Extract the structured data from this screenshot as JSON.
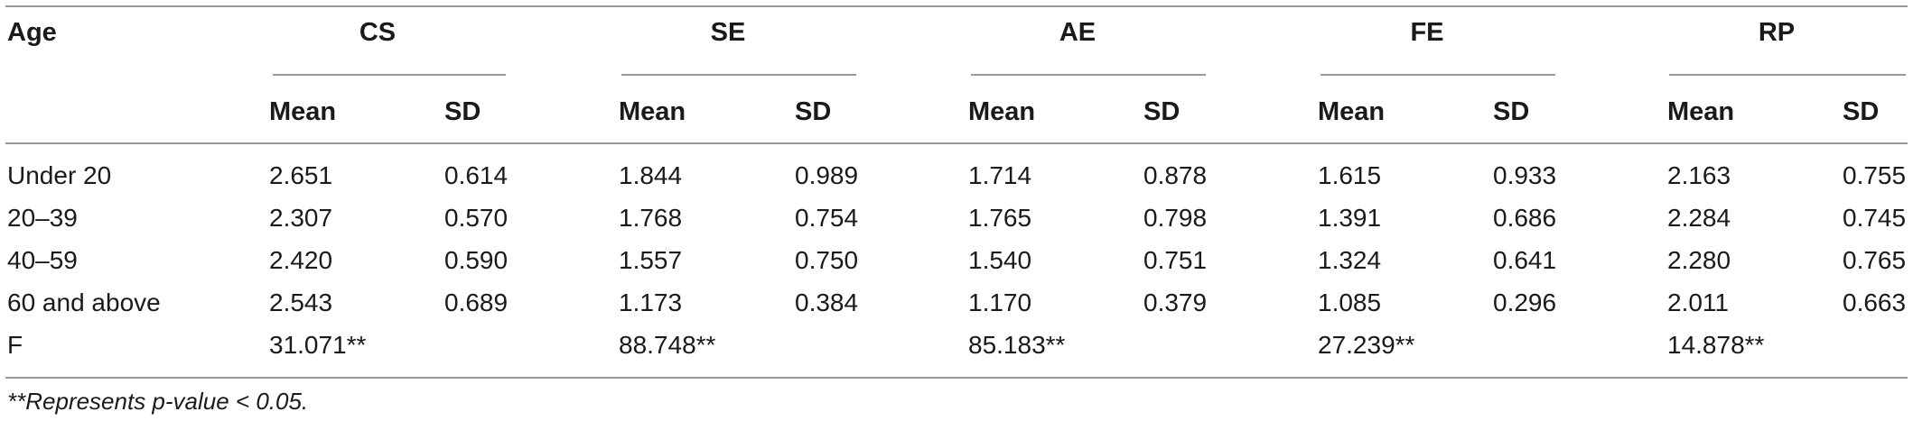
{
  "table": {
    "corner_header": "Age",
    "groups": [
      {
        "label": "CS",
        "mean_label": "Mean",
        "sd_label": "SD"
      },
      {
        "label": "SE",
        "mean_label": "Mean",
        "sd_label": "SD"
      },
      {
        "label": "AE",
        "mean_label": "Mean",
        "sd_label": "SD"
      },
      {
        "label": "FE",
        "mean_label": "Mean",
        "sd_label": "SD"
      },
      {
        "label": "RP",
        "mean_label": "Mean",
        "sd_label": "SD"
      }
    ],
    "rows": [
      {
        "label": "Under 20",
        "cells": [
          "2.651",
          "0.614",
          "1.844",
          "0.989",
          "1.714",
          "0.878",
          "1.615",
          "0.933",
          "2.163",
          "0.755"
        ]
      },
      {
        "label": "20–39",
        "cells": [
          "2.307",
          "0.570",
          "1.768",
          "0.754",
          "1.765",
          "0.798",
          "1.391",
          "0.686",
          "2.284",
          "0.745"
        ]
      },
      {
        "label": "40–59",
        "cells": [
          "2.420",
          "0.590",
          "1.557",
          "0.750",
          "1.540",
          "0.751",
          "1.324",
          "0.641",
          "2.280",
          "0.765"
        ]
      },
      {
        "label": "60 and above",
        "cells": [
          "2.543",
          "0.689",
          "1.173",
          "0.384",
          "1.170",
          "0.379",
          "1.085",
          "0.296",
          "2.011",
          "0.663"
        ]
      },
      {
        "label": "F",
        "cells": [
          "31.071**",
          "",
          "88.748**",
          "",
          "85.183**",
          "",
          "27.239**",
          "",
          "14.878**",
          ""
        ]
      }
    ],
    "footnote": "**Represents p-value < 0.05."
  }
}
